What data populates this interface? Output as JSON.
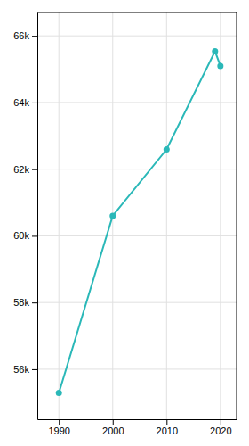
{
  "chart_data": {
    "type": "line",
    "x": [
      1990,
      2000,
      2010,
      2019,
      2020
    ],
    "values": [
      55290,
      60603,
      62592,
      65534,
      65098
    ],
    "color": "#2ab8b8",
    "marker": "circle",
    "xlim": [
      1986,
      2023
    ],
    "xticks": [
      1990,
      2000,
      2010,
      2020
    ],
    "ylim": [
      54500,
      66700
    ],
    "yticks": [
      {
        "value": 56000,
        "label": "56k"
      },
      {
        "value": 58000,
        "label": "58k"
      },
      {
        "value": 60000,
        "label": "60k"
      },
      {
        "value": 62000,
        "label": "62k"
      },
      {
        "value": 64000,
        "label": "64k"
      },
      {
        "value": 66000,
        "label": "66k"
      }
    ],
    "grid": true
  }
}
